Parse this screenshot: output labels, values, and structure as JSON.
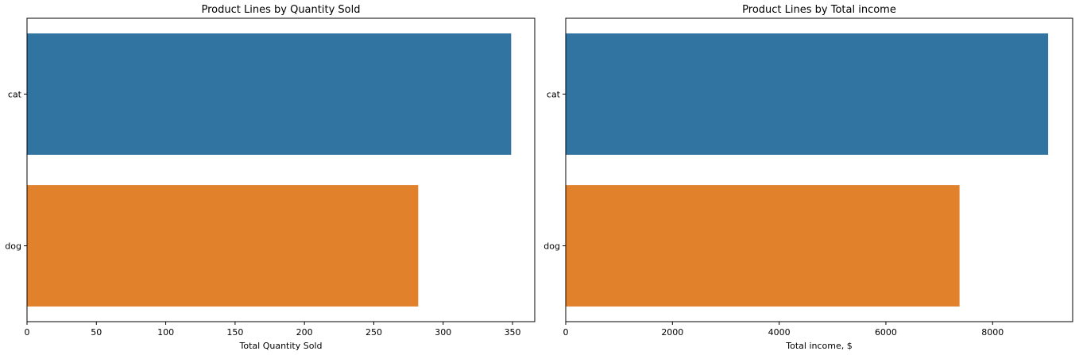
{
  "chart_data": [
    {
      "type": "bar",
      "orientation": "horizontal",
      "title": "Product Lines by Quantity Sold",
      "xlabel": "Total Quantity Sold",
      "ylabel": "",
      "categories": [
        "cat",
        "dog"
      ],
      "values": [
        349,
        282
      ],
      "colors": [
        "#3274a1",
        "#e1812c"
      ],
      "xlim": [
        0,
        366
      ],
      "xticks": [
        0,
        50,
        100,
        150,
        200,
        250,
        300,
        350
      ],
      "grid": false
    },
    {
      "type": "bar",
      "orientation": "horizontal",
      "title": "Product Lines by Total income",
      "xlabel": "Total income, $",
      "ylabel": "",
      "categories": [
        "cat",
        "dog"
      ],
      "values": [
        9040,
        7380
      ],
      "colors": [
        "#3274a1",
        "#e1812c"
      ],
      "xlim": [
        0,
        9500
      ],
      "xticks": [
        0,
        2000,
        4000,
        6000,
        8000
      ],
      "grid": false
    }
  ]
}
